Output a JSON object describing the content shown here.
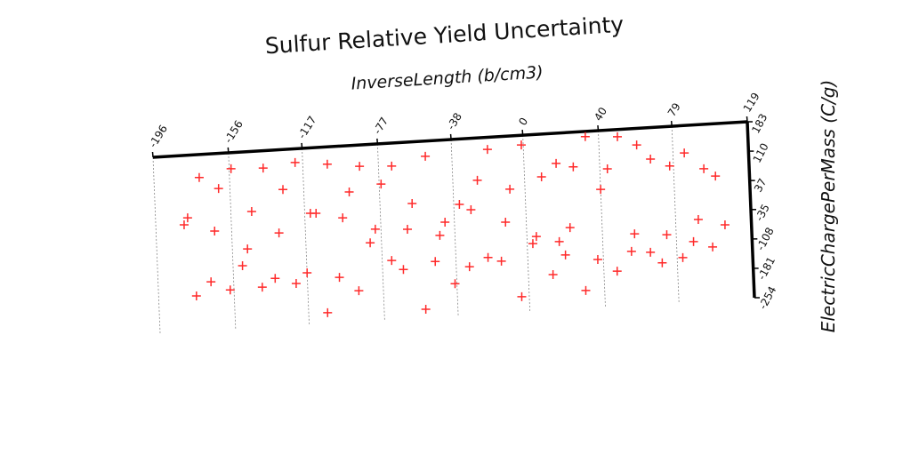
{
  "chart_data": {
    "type": "scatter",
    "title": "Sulfur Relative Yield Uncertainty",
    "x_label": "InverseLength (b/cm3)",
    "y_label": "ElectricChargePerMass (C/g)",
    "xlim": [
      -196,
      119
    ],
    "ylim": [
      -254,
      183
    ],
    "xticks": [
      -196,
      -156,
      -117,
      -77,
      -38,
      0,
      40,
      79,
      119
    ],
    "yticks": [
      183,
      110,
      37,
      -35,
      -108,
      -181,
      -254
    ],
    "grid": true,
    "color": "#ff2a2a",
    "marker": "+",
    "x": [
      -172,
      -162,
      -155,
      -138,
      -121,
      -104,
      -87,
      -70,
      -52,
      -19,
      -1,
      33,
      50,
      60,
      67,
      85,
      95,
      101,
      77,
      44,
      26,
      17,
      9,
      -8,
      -25,
      -128,
      -93,
      -76,
      40,
      -181,
      -179,
      -165,
      -145,
      -131,
      -114,
      -111,
      -97,
      -80,
      -83,
      -63,
      -60,
      -46,
      -43,
      -35,
      -29,
      -11,
      5,
      3,
      23,
      17,
      57,
      74,
      91,
      105,
      88,
      98,
      -148,
      -151,
      -176,
      -168,
      -158,
      -141,
      -134,
      -123,
      -117,
      -100,
      -90,
      -107,
      -72,
      -66,
      -49,
      -55,
      -39,
      -31,
      -21,
      -14,
      -4,
      13,
      20,
      30,
      37,
      47,
      55,
      65,
      71,
      82
    ],
    "y": [
      126,
      96,
      143,
      140,
      149,
      140,
      130,
      126,
      145,
      153,
      159,
      170,
      165,
      142,
      105,
      115,
      73,
      53,
      85,
      87,
      97,
      108,
      77,
      51,
      78,
      84,
      68,
      83,
      37,
      11,
      28,
      -9,
      34,
      -23,
      21,
      20,
      5,
      -28,
      -61,
      -33,
      30,
      -53,
      -21,
      21,
      6,
      -30,
      -70,
      -87,
      -53,
      -86,
      -78,
      -85,
      -52,
      -69,
      -106,
      -122,
      -58,
      -99,
      -167,
      -134,
      -157,
      -155,
      -135,
      -151,
      -126,
      -142,
      -178,
      -228,
      -108,
      -132,
      -117,
      -234,
      -175,
      -135,
      -115,
      -126,
      -217,
      -167,
      -120,
      -211,
      -136,
      -168,
      -121,
      -126,
      -154,
      -144
    ]
  }
}
